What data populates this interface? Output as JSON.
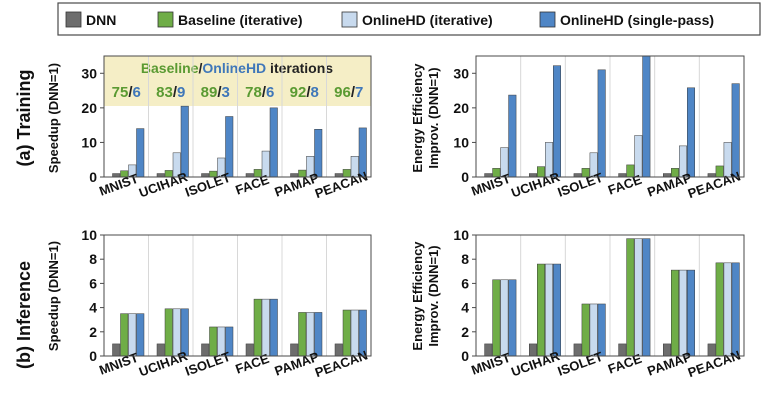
{
  "legend": [
    {
      "name": "DNN",
      "color": "#6d6d6d"
    },
    {
      "name": "Baseline (iterative)",
      "color": "#6fad47"
    },
    {
      "name": "OnlineHD (iterative)",
      "color": "#c8daee"
    },
    {
      "name": "OnlineHD (single-pass)",
      "color": "#4f86c6"
    }
  ],
  "row_labels": {
    "training": "(a) Training",
    "inference": "(b) Inference"
  },
  "iterations_banner": {
    "baseline_word": "Baseline",
    "slash": "/",
    "onlinehd_word": "OnlineHD",
    "suffix": " iterations",
    "baseline_values": [
      "75",
      "83",
      "89",
      "78",
      "92",
      "96"
    ],
    "onlinehd_values": [
      "6",
      "9",
      "3",
      "6",
      "8",
      "7"
    ],
    "baseline_color": "#5a9a32",
    "onlinehd_color": "#3f77b9",
    "background": "#f5eec6"
  },
  "chart_data": [
    {
      "id": "training-speedup",
      "type": "bar",
      "ylabel": "Speedup (DNN=1)",
      "ylim": [
        0,
        35
      ],
      "yticks": [
        "0",
        "10",
        "20",
        "30"
      ],
      "categories": [
        "MNIST",
        "UCIHAR",
        "ISOLET",
        "FACE",
        "PAMAP",
        "PEACAN"
      ],
      "series": [
        {
          "name": "DNN",
          "values": [
            1,
            1,
            1,
            1,
            1,
            1
          ]
        },
        {
          "name": "Baseline (iterative)",
          "values": [
            1.8,
            1.9,
            1.7,
            2.2,
            2.0,
            2.2
          ]
        },
        {
          "name": "OnlineHD (iterative)",
          "values": [
            3.5,
            7.0,
            5.5,
            7.5,
            6.0,
            6.0
          ]
        },
        {
          "name": "OnlineHD (single-pass)",
          "values": [
            14.0,
            20.5,
            17.5,
            20.0,
            13.8,
            14.2
          ]
        }
      ]
    },
    {
      "id": "training-energy",
      "type": "bar",
      "ylabel": "Energy Efficiency Improv. (DNN=1)",
      "ylim": [
        0,
        35
      ],
      "yticks": [
        "0",
        "10",
        "20",
        "30"
      ],
      "categories": [
        "MNIST",
        "UCIHAR",
        "ISOLET",
        "FACE",
        "PAMAP",
        "PEACAN"
      ],
      "series": [
        {
          "name": "DNN",
          "values": [
            1,
            1,
            1,
            1,
            1,
            1
          ]
        },
        {
          "name": "Baseline (iterative)",
          "values": [
            2.5,
            3.0,
            2.5,
            3.5,
            2.5,
            3.2
          ]
        },
        {
          "name": "OnlineHD (iterative)",
          "values": [
            8.5,
            10.0,
            7.0,
            12.0,
            9.0,
            10.0
          ]
        },
        {
          "name": "OnlineHD (single-pass)",
          "values": [
            23.7,
            32.2,
            31.0,
            35.0,
            25.8,
            27.0
          ]
        }
      ]
    },
    {
      "id": "inference-speedup",
      "type": "bar",
      "ylabel": "Speedup (DNN=1)",
      "ylim": [
        0,
        10
      ],
      "yticks": [
        "0",
        "2",
        "4",
        "6",
        "8",
        "10"
      ],
      "categories": [
        "MNIST",
        "UCIHAR",
        "ISOLET",
        "FACE",
        "PAMAP",
        "PEACAN"
      ],
      "series": [
        {
          "name": "DNN",
          "values": [
            1,
            1,
            1,
            1,
            1,
            1
          ]
        },
        {
          "name": "Baseline (iterative)",
          "values": [
            3.5,
            3.9,
            2.4,
            4.7,
            3.6,
            3.8
          ]
        },
        {
          "name": "OnlineHD (iterative)",
          "values": [
            3.5,
            3.9,
            2.4,
            4.7,
            3.6,
            3.8
          ]
        },
        {
          "name": "OnlineHD (single-pass)",
          "values": [
            3.5,
            3.9,
            2.4,
            4.7,
            3.6,
            3.8
          ]
        }
      ]
    },
    {
      "id": "inference-energy",
      "type": "bar",
      "ylabel": "Energy Efficiency Improv. (DNN=1)",
      "ylim": [
        0,
        10
      ],
      "yticks": [
        "0",
        "2",
        "4",
        "6",
        "8",
        "10"
      ],
      "categories": [
        "MNIST",
        "UCIHAR",
        "ISOLET",
        "FACE",
        "PAMAP",
        "PEACAN"
      ],
      "series": [
        {
          "name": "DNN",
          "values": [
            1,
            1,
            1,
            1,
            1,
            1
          ]
        },
        {
          "name": "Baseline (iterative)",
          "values": [
            6.3,
            7.6,
            4.3,
            9.7,
            7.1,
            7.7
          ]
        },
        {
          "name": "OnlineHD (iterative)",
          "values": [
            6.3,
            7.6,
            4.3,
            9.7,
            7.1,
            7.7
          ]
        },
        {
          "name": "OnlineHD (single-pass)",
          "values": [
            6.3,
            7.6,
            4.3,
            9.7,
            7.1,
            7.7
          ]
        }
      ]
    }
  ]
}
